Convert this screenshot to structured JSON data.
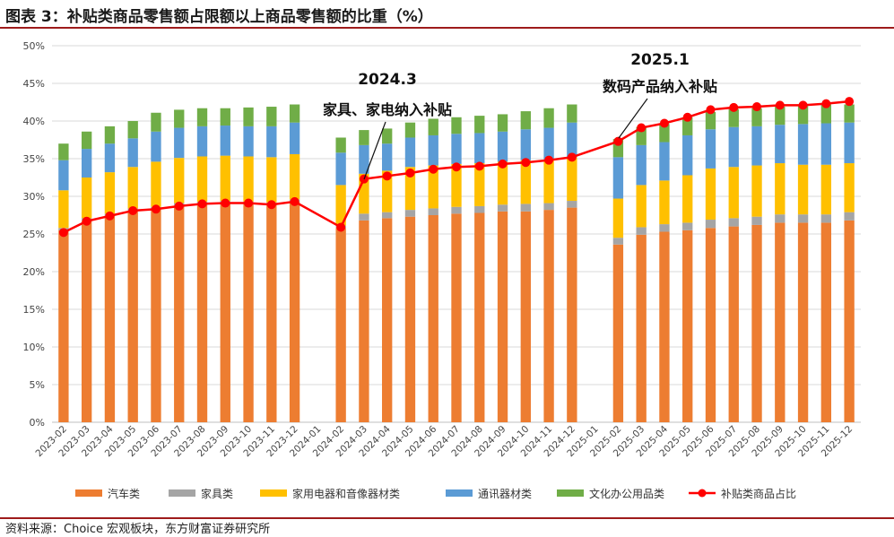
{
  "title": "图表 3：补贴类商品零售额占限额以上商品零售额的比重（%）",
  "source": "资料来源：Choice 宏观板块，东方财富证券研究所",
  "annotations": [
    {
      "year": "2024.3",
      "text": "家具、家电纳入补贴"
    },
    {
      "year": "2025.1",
      "text": "数码产品纳入补贴"
    }
  ],
  "chart_data": {
    "type": "bar",
    "stacked": true,
    "categories": [
      "2023-02",
      "2023-03",
      "2023-04",
      "2023-05",
      "2023-06",
      "2023-07",
      "2023-08",
      "2023-09",
      "2023-10",
      "2023-11",
      "2023-12",
      "2024-01",
      "2024-02",
      "2024-03",
      "2024-04",
      "2024-05",
      "2024-06",
      "2024-07",
      "2024-08",
      "2024-09",
      "2024-10",
      "2024-11",
      "2024-12",
      "2025-01",
      "2025-02",
      "2025-03",
      "2025-04",
      "2025-05",
      "2025-06",
      "2025-07",
      "2025-08",
      "2025-09",
      "2025-10",
      "2025-11",
      "2025-12"
    ],
    "y_ticks": [
      "0%",
      "5%",
      "10%",
      "15%",
      "20%",
      "25%",
      "30%",
      "35%",
      "40%",
      "45%",
      "50%"
    ],
    "ylim": [
      0,
      50
    ],
    "series": [
      {
        "name": "汽车类",
        "color": "#ED7D31",
        "values": [
          25.5,
          26.8,
          27.4,
          28.1,
          28.3,
          28.8,
          29.0,
          29.1,
          29.0,
          28.9,
          29.3,
          null,
          25.8,
          26.8,
          27.1,
          27.3,
          27.5,
          27.7,
          27.8,
          28.0,
          28.0,
          28.2,
          28.5,
          null,
          23.6,
          24.9,
          25.3,
          25.5,
          25.8,
          26.0,
          26.2,
          26.5,
          26.5,
          26.5,
          26.8
        ]
      },
      {
        "name": "家具类",
        "color": "#A5A5A5",
        "values": [
          0.3,
          0.3,
          0.3,
          0.3,
          0.3,
          0.3,
          0.3,
          0.3,
          0.3,
          0.3,
          0.3,
          null,
          0.3,
          0.9,
          0.8,
          0.9,
          0.9,
          0.9,
          0.9,
          0.9,
          1.0,
          0.9,
          0.9,
          null,
          0.9,
          1.0,
          1.0,
          1.0,
          1.1,
          1.1,
          1.1,
          1.1,
          1.1,
          1.1,
          1.1
        ]
      },
      {
        "name": "家用电器和音像器材类",
        "color": "#FFC000",
        "values": [
          5.0,
          5.4,
          5.5,
          5.5,
          6.0,
          6.0,
          6.0,
          6.0,
          6.0,
          6.0,
          6.0,
          null,
          5.4,
          5.3,
          5.5,
          5.7,
          5.7,
          5.7,
          5.7,
          5.7,
          5.8,
          5.8,
          5.8,
          null,
          5.2,
          5.6,
          5.8,
          6.3,
          6.8,
          6.8,
          6.8,
          6.8,
          6.6,
          6.6,
          6.5
        ]
      },
      {
        "name": "通讯器材类",
        "color": "#5B9BD5",
        "values": [
          4.0,
          3.8,
          3.8,
          3.8,
          4.0,
          4.0,
          4.0,
          4.0,
          4.0,
          4.1,
          4.2,
          null,
          4.3,
          3.8,
          3.6,
          3.9,
          4.0,
          4.0,
          4.0,
          4.0,
          4.1,
          4.2,
          4.6,
          null,
          5.5,
          5.3,
          5.1,
          5.3,
          5.2,
          5.3,
          5.2,
          5.1,
          5.4,
          5.5,
          5.4
        ]
      },
      {
        "name": "文化办公用品类",
        "color": "#70AD47",
        "values": [
          2.2,
          2.3,
          2.3,
          2.3,
          2.5,
          2.4,
          2.4,
          2.3,
          2.5,
          2.6,
          2.4,
          null,
          2.0,
          2.0,
          2.0,
          2.0,
          2.2,
          2.2,
          2.3,
          2.3,
          2.4,
          2.6,
          2.4,
          null,
          2.4,
          2.4,
          2.4,
          2.4,
          2.3,
          2.4,
          2.4,
          2.4,
          2.4,
          2.5,
          2.4
        ]
      },
      {
        "name": "补贴类商品占比",
        "color": "#FF0000",
        "type": "line",
        "values": [
          25.2,
          26.7,
          27.4,
          28.1,
          28.3,
          28.7,
          29.0,
          29.1,
          29.1,
          28.9,
          29.3,
          null,
          25.9,
          32.3,
          32.7,
          33.1,
          33.6,
          33.9,
          34.0,
          34.3,
          34.5,
          34.8,
          35.2,
          null,
          37.3,
          39.1,
          39.7,
          40.5,
          41.5,
          41.8,
          41.9,
          42.1,
          42.1,
          42.3,
          42.6
        ]
      }
    ]
  }
}
